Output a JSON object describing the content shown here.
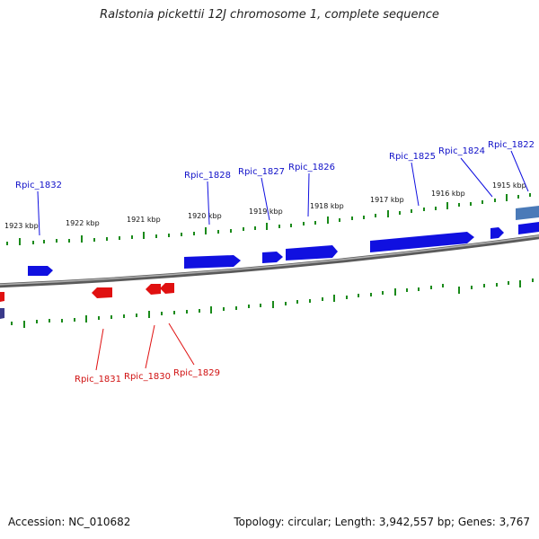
{
  "title": "Ralstonia pickettii 12J chromosome 1, complete sequence",
  "footer": {
    "accession": "Accession: NC_010682",
    "summary": "Topology: circular; Length: 3,942,557 bp; Genes: 3,767"
  },
  "colors": {
    "forward_gene": "#1010e0",
    "reverse_gene": "#e01010",
    "tick": "#1a8a1a",
    "backbone": "#808080"
  },
  "scale_ticks": [
    "1923 kbp",
    "1922 kbp",
    "1921 kbp",
    "1920 kbp",
    "1919 kbp",
    "1918 kbp",
    "1917 kbp",
    "1916 kbp",
    "1915 kbp"
  ],
  "forward_genes": [
    "Rpic_1832",
    "Rpic_1828",
    "Rpic_1827",
    "Rpic_1826",
    "Rpic_1825",
    "Rpic_1824",
    "Rpic_1822"
  ],
  "reverse_genes": [
    "Rpic_1831",
    "Rpic_1830",
    "Rpic_1829"
  ]
}
